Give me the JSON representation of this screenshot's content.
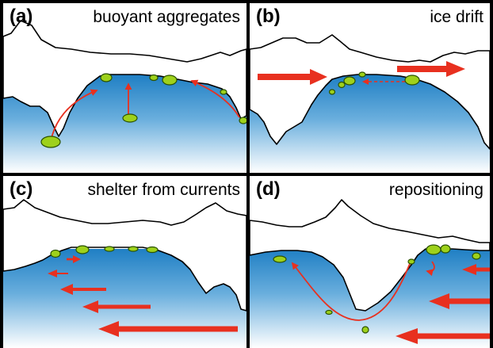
{
  "figure": {
    "panels": [
      {
        "letter": "(a)",
        "caption": "buoyant aggregates"
      },
      {
        "letter": "(b)",
        "caption": "ice drift"
      },
      {
        "letter": "(c)",
        "caption": "shelter from currents"
      },
      {
        "letter": "(d)",
        "caption": "repositioning"
      }
    ]
  },
  "colors": {
    "border": "#000000",
    "ice_fill": "#ffffff",
    "water_top": "#1f7fc4",
    "water_bottom": "#ffffff",
    "aggregate_fill": "#9ed11b",
    "aggregate_stroke": "#2b5200",
    "arrow": "#e8301f"
  }
}
